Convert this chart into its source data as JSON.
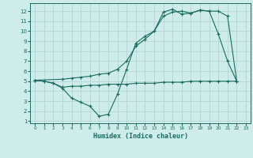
{
  "title": "",
  "xlabel": "Humidex (Indice chaleur)",
  "xlim": [
    -0.5,
    23.5
  ],
  "ylim": [
    0.8,
    12.8
  ],
  "yticks": [
    1,
    2,
    3,
    4,
    5,
    6,
    7,
    8,
    9,
    10,
    11,
    12
  ],
  "xticks": [
    0,
    1,
    2,
    3,
    4,
    5,
    6,
    7,
    8,
    9,
    10,
    11,
    12,
    13,
    14,
    15,
    16,
    17,
    18,
    19,
    20,
    21,
    22,
    23
  ],
  "bg_color": "#cdecea",
  "line_color": "#1a6b62",
  "grid_color": "#b8d8d6",
  "line1_x": [
    0,
    1,
    2,
    3,
    4,
    5,
    6,
    7,
    8,
    9,
    10,
    11,
    12,
    13,
    14,
    15,
    16,
    17,
    18,
    19,
    20,
    21,
    22
  ],
  "line1_y": [
    5.1,
    5.0,
    4.8,
    4.3,
    3.3,
    2.9,
    2.5,
    1.5,
    1.7,
    3.7,
    6.2,
    8.8,
    9.5,
    10.0,
    11.9,
    12.2,
    11.7,
    11.8,
    12.1,
    12.0,
    9.7,
    7.0,
    5.0
  ],
  "line2_x": [
    0,
    3,
    4,
    5,
    6,
    7,
    8,
    9,
    10,
    11,
    12,
    13,
    14,
    15,
    16,
    17,
    18,
    19,
    20,
    21,
    22
  ],
  "line2_y": [
    5.1,
    5.2,
    5.3,
    5.4,
    5.5,
    5.7,
    5.8,
    6.2,
    7.0,
    8.5,
    9.2,
    10.0,
    11.5,
    11.9,
    12.0,
    11.8,
    12.1,
    12.0,
    12.0,
    11.5,
    5.0
  ],
  "line3_x": [
    0,
    1,
    2,
    3,
    4,
    5,
    6,
    7,
    8,
    9,
    10,
    11,
    12,
    13,
    14,
    15,
    16,
    17,
    18,
    19,
    20,
    21,
    22
  ],
  "line3_y": [
    5.1,
    5.0,
    4.8,
    4.4,
    4.5,
    4.5,
    4.6,
    4.6,
    4.7,
    4.7,
    4.7,
    4.8,
    4.8,
    4.8,
    4.9,
    4.9,
    4.9,
    5.0,
    5.0,
    5.0,
    5.0,
    5.0,
    5.0
  ]
}
